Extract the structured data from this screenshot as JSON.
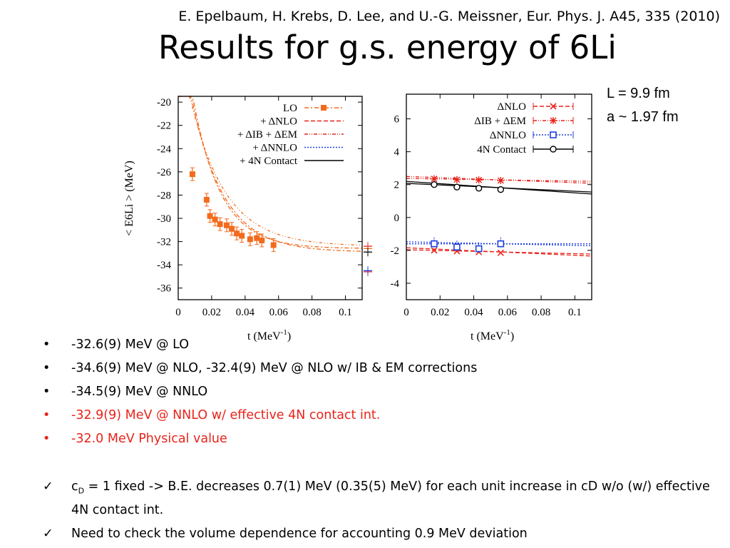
{
  "reference": "E. Epelbaum, H. Krebs, D. Lee, and U.-G. Meissner, Eur. Phys. J. A45, 335 (2010)",
  "title": "Results for g.s. energy of 6Li",
  "params": {
    "L": "L = 9.9 fm",
    "a": "a ~ 1.97 fm"
  },
  "bullets": [
    {
      "text": "-32.6(9) MeV @ LO",
      "color": "#000000"
    },
    {
      "text": "-34.6(9) MeV @ NLO, -32.4(9) MeV @ NLO w/ IB & EM corrections",
      "color": "#000000"
    },
    {
      "text": "-34.5(9) MeV @ NNLO",
      "color": "#000000"
    },
    {
      "text": "-32.9(9) MeV @ NNLO w/ effective 4N contact int.",
      "color": "#e8241b"
    },
    {
      "text": "-32.0 MeV Physical value",
      "color": "#e8241b"
    }
  ],
  "bullet_symbol": "•",
  "check_symbol": "✓",
  "checks": [
    {
      "pre": "c",
      "sub": "D",
      "text": " = 1 fixed -> B.E. decreases 0.7(1) MeV (0.35(5) MeV) for each unit increase in cD w/o (w/) effective 4N contact int."
    },
    {
      "pre": "",
      "sub": "",
      "text": "Need to check the volume dependence for accounting 0.9 MeV deviation"
    }
  ],
  "chart_data": [
    {
      "type": "line",
      "xlabel": "t (MeV",
      "xlabel_sup": "-1",
      "xlabel_end": ")",
      "ylabel": "< E6Li > (MeV)",
      "xlim": [
        0,
        0.11
      ],
      "ylim": [
        -37,
        -19.5
      ],
      "xticks": [
        "0",
        "0.02",
        "0.04",
        "0.06",
        "0.08",
        "0.1"
      ],
      "yticks": [
        "-20",
        "-22",
        "-24",
        "-26",
        "-28",
        "-30",
        "-32",
        "-34",
        "-36"
      ],
      "legend_position": "top-right",
      "legend": [
        "LO",
        "+ ΔNLO",
        "+ ΔIB + ΔEM",
        "+ ΔNNLO",
        "+ 4N Contact"
      ],
      "series": [
        {
          "name": "LO",
          "color": "#f26b1d",
          "x": [
            0.0085,
            0.017,
            0.019,
            0.022,
            0.025,
            0.029,
            0.032,
            0.035,
            0.038,
            0.043,
            0.047,
            0.05,
            0.057
          ],
          "y": [
            -26.2,
            -28.4,
            -29.8,
            -30.1,
            -30.5,
            -30.6,
            -30.9,
            -31.3,
            -31.5,
            -31.8,
            -31.7,
            -31.9,
            -32.3
          ]
        }
      ],
      "extrapolated": {
        "lo": -32.6,
        "nlo": -34.6,
        "ib_em": -32.4,
        "nnlo": -34.5,
        "contact": -32.9
      }
    },
    {
      "type": "line",
      "xlabel": "t (MeV",
      "xlabel_sup": "-1",
      "xlabel_end": ")",
      "xlim": [
        0,
        0.11
      ],
      "ylim": [
        -5,
        7.5
      ],
      "xticks": [
        "0",
        "0.02",
        "0.04",
        "0.06",
        "0.08",
        "0.1"
      ],
      "yticks": [
        "6",
        "4",
        "2",
        "0",
        "-2",
        "-4"
      ],
      "legend_position": "top-right",
      "legend": [
        "ΔNLO",
        "ΔIB + ΔEM",
        "ΔNNLO",
        "4N Contact"
      ],
      "series": [
        {
          "name": "ΔNLO",
          "color": "#e8241b",
          "x": [
            0.0165,
            0.03,
            0.043,
            0.056
          ],
          "y": [
            -2.0,
            -2.05,
            -2.1,
            -2.15
          ]
        },
        {
          "name": "ΔIB + ΔEM",
          "color": "#e8241b",
          "x": [
            0.0165,
            0.03,
            0.043,
            0.056
          ],
          "y": [
            2.35,
            2.3,
            2.28,
            2.25
          ]
        },
        {
          "name": "ΔNNLO",
          "color": "#1d3fe0",
          "x": [
            0.0165,
            0.03,
            0.043,
            0.056
          ],
          "y": [
            -1.6,
            -1.8,
            -1.9,
            -1.6
          ]
        },
        {
          "name": "4N Contact",
          "color": "#000000",
          "x": [
            0.0165,
            0.03,
            0.043,
            0.056
          ],
          "y": [
            2.0,
            1.85,
            1.78,
            1.7
          ]
        }
      ]
    }
  ]
}
